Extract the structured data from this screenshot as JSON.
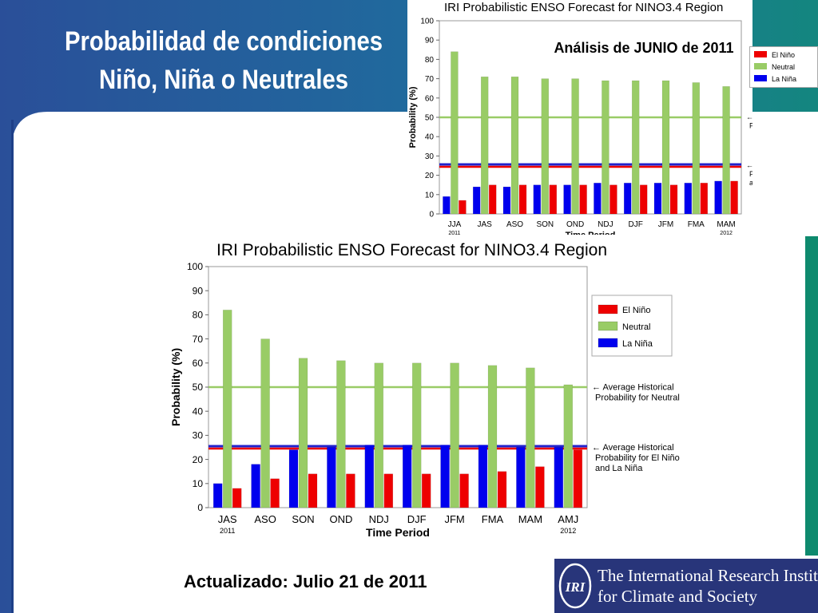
{
  "slide": {
    "title_line1": "Probabilidad de condiciones",
    "title_line2": "Niño, Niña o Neutrales",
    "updated": "Actualizado: Julio 21 de 2011",
    "colors": {
      "background": "#1f4f8f",
      "panel": "#ffffff",
      "teal_bar": "#0e8a6e",
      "banner": "#28357a"
    }
  },
  "footer": {
    "org_line1": "The International Research Institute",
    "org_line2": "for Climate and Society",
    "logo_text": "IRI"
  },
  "chart_data": [
    {
      "type": "bar",
      "title": "IRI Probabilistic ENSO Forecast for NINO3.4 Region",
      "subtitle": "Análisis de JUNIO de 2011",
      "xlabel": "Time Period",
      "ylabel": "Probability (%)",
      "ylim": [
        0,
        100
      ],
      "yticks": [
        0,
        10,
        20,
        30,
        40,
        50,
        60,
        70,
        80,
        90,
        100
      ],
      "grid": false,
      "legend_position": "top-right",
      "categories": [
        "JJA",
        "JAS",
        "ASO",
        "SON",
        "OND",
        "NDJ",
        "DJF",
        "JFM",
        "FMA",
        "MAM"
      ],
      "year_labels": {
        "first": "2011",
        "last": "2012"
      },
      "series": [
        {
          "name": "La Niña",
          "color": "#0000ee",
          "values": [
            9,
            14,
            14,
            15,
            15,
            16,
            16,
            16,
            16,
            17
          ]
        },
        {
          "name": "Neutral",
          "color": "#99cc66",
          "values": [
            84,
            71,
            71,
            70,
            70,
            69,
            69,
            69,
            68,
            66
          ]
        },
        {
          "name": "El Niño",
          "color": "#ee0000",
          "values": [
            7,
            15,
            15,
            15,
            15,
            15,
            15,
            15,
            16,
            17
          ]
        }
      ],
      "reference_lines": [
        {
          "value": 50,
          "color": "#99cc66",
          "label_line1": "← Average Historical",
          "label_line2": "Probability for Neutral",
          "label_line3": ""
        },
        {
          "value": 25,
          "color": "#2222cc",
          "color2": "#ee0000",
          "label_line1": "← Average Historical",
          "label_line2": "Probability for El Niño",
          "label_line3": "and La Niña"
        }
      ]
    },
    {
      "type": "bar",
      "title": "IRI Probabilistic ENSO Forecast for NINO3.4 Region",
      "subtitle": "",
      "xlabel": "Time Period",
      "ylabel": "Probability (%)",
      "ylim": [
        0,
        100
      ],
      "yticks": [
        0,
        10,
        20,
        30,
        40,
        50,
        60,
        70,
        80,
        90,
        100
      ],
      "grid": false,
      "legend_position": "top-right",
      "categories": [
        "JAS",
        "ASO",
        "SON",
        "OND",
        "NDJ",
        "DJF",
        "JFM",
        "FMA",
        "MAM",
        "AMJ"
      ],
      "year_labels": {
        "first": "2011",
        "last": "2012"
      },
      "series": [
        {
          "name": "La Niña",
          "color": "#0000ee",
          "values": [
            10,
            18,
            24,
            25,
            26,
            26,
            26,
            26,
            25,
            25
          ]
        },
        {
          "name": "Neutral",
          "color": "#99cc66",
          "values": [
            82,
            70,
            62,
            61,
            60,
            60,
            60,
            59,
            58,
            51
          ]
        },
        {
          "name": "El Niño",
          "color": "#ee0000",
          "values": [
            8,
            12,
            14,
            14,
            14,
            14,
            14,
            15,
            17,
            24
          ]
        }
      ],
      "reference_lines": [
        {
          "value": 50,
          "color": "#99cc66",
          "label_line1": "← Average Historical",
          "label_line2": "Probability for Neutral",
          "label_line3": ""
        },
        {
          "value": 25,
          "color": "#2222cc",
          "color2": "#ee0000",
          "label_line1": "← Average Historical",
          "label_line2": "Probability for El Niño",
          "label_line3": "and La Niña"
        }
      ]
    }
  ]
}
